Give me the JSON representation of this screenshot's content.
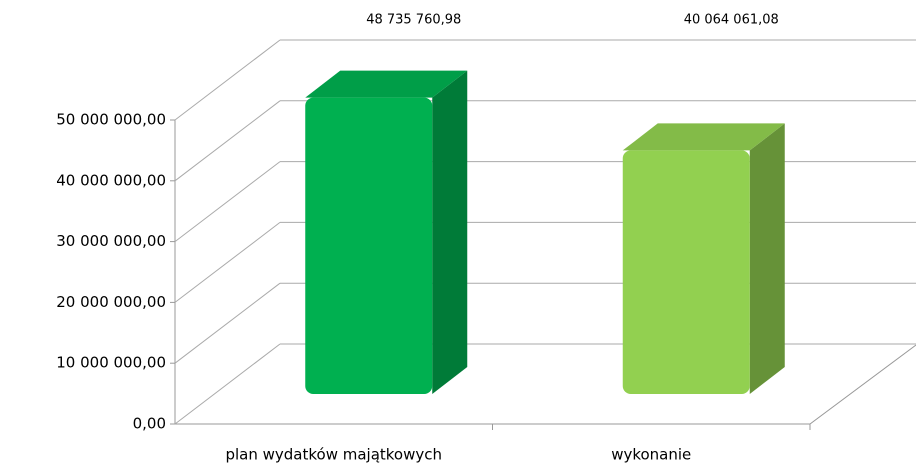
{
  "chart_data": {
    "type": "bar3d",
    "categories": [
      "plan wydatków majątkowych",
      "wykonanie"
    ],
    "values": [
      48735760.98,
      40064061.08
    ],
    "value_labels": [
      "48 735 760,98",
      "40 064 061,08"
    ],
    "colors": [
      "#00b050",
      "#92d050"
    ],
    "ylim": [
      0,
      50000000
    ],
    "yticks": [
      {
        "value": 0,
        "label": "0,00"
      },
      {
        "value": 10000000,
        "label": "10 000 000,00"
      },
      {
        "value": 20000000,
        "label": "20 000 000,00"
      },
      {
        "value": 30000000,
        "label": "30 000 000,00"
      },
      {
        "value": 40000000,
        "label": "40 000 000,00"
      },
      {
        "value": 50000000,
        "label": "50 000 000,00"
      }
    ],
    "grid": true
  }
}
